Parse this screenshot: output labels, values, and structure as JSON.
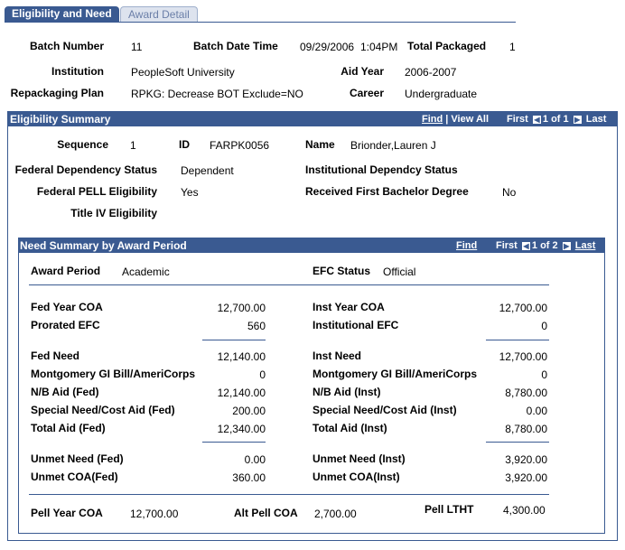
{
  "tabs": {
    "active": "Eligibility and Need",
    "inactive": "Award Detail"
  },
  "top": {
    "batch_number_label": "Batch Number",
    "batch_number": "11",
    "batch_date_label": "Batch Date Time",
    "batch_date": "09/29/2006",
    "batch_time": "1:04PM",
    "total_packaged_label": "Total Packaged",
    "total_packaged": "1",
    "institution_label": "Institution",
    "institution": "PeopleSoft University",
    "aid_year_label": "Aid Year",
    "aid_year": "2006-2007",
    "repack_label": "Repackaging Plan",
    "repack": "RPKG:  Decrease BOT Exclude=NO",
    "career_label": "Career",
    "career": "Undergraduate"
  },
  "elig": {
    "title": "Eligibility Summary",
    "nav": {
      "find": "Find",
      "sep": " | ",
      "view_all": "View All",
      "first": "First",
      "count": "1 of 1",
      "last": "Last"
    },
    "sequence_label": "Sequence",
    "sequence": "1",
    "id_label": "ID",
    "id": "FARPK0056",
    "name_label": "Name",
    "name": "Brionder,Lauren J",
    "fed_dep_label": "Federal Dependency Status",
    "fed_dep": "Dependent",
    "inst_dep_label": "Institutional Dependcy Status",
    "pell_label": "Federal PELL Eligibility",
    "pell": "Yes",
    "bach_label": "Received First Bachelor Degree",
    "bach": "No",
    "title4_label": "Title IV Eligibility"
  },
  "need": {
    "title": "Need Summary by Award Period",
    "nav": {
      "find": "Find",
      "first": "First",
      "count": "1 of 2",
      "last": "Last"
    },
    "award_period_label": "Award Period",
    "award_period": "Academic",
    "efc_status_label": "EFC Status",
    "efc_status": "Official",
    "fed": [
      {
        "label": "Fed Year COA",
        "value": "12,700.00"
      },
      {
        "label": "Prorated EFC",
        "value": "560"
      },
      {
        "label": "Fed Need",
        "value": "12,140.00"
      },
      {
        "label": "Montgomery GI Bill/AmeriCorps",
        "value": "0"
      },
      {
        "label": "N/B Aid (Fed)",
        "value": "12,140.00"
      },
      {
        "label": "Special Need/Cost Aid (Fed)",
        "value": "200.00"
      },
      {
        "label": "Total Aid (Fed)",
        "value": "12,340.00"
      },
      {
        "label": "Unmet Need (Fed)",
        "value": "0.00"
      },
      {
        "label": "Unmet COA(Fed)",
        "value": "360.00"
      }
    ],
    "inst": [
      {
        "label": "Inst Year COA",
        "value": "12,700.00"
      },
      {
        "label": "Institutional EFC",
        "value": "0"
      },
      {
        "label": "Inst Need",
        "value": "12,700.00"
      },
      {
        "label": "Montgomery GI Bill/AmeriCorps",
        "value": "0"
      },
      {
        "label": "N/B Aid (Inst)",
        "value": "8,780.00"
      },
      {
        "label": "Special Need/Cost Aid (Inst)",
        "value": "0.00"
      },
      {
        "label": "Total Aid (Inst)",
        "value": "8,780.00"
      },
      {
        "label": "Unmet Need (Inst)",
        "value": "3,920.00"
      },
      {
        "label": "Unmet COA(Inst)",
        "value": "3,920.00"
      }
    ],
    "pell_coa_label": "Pell Year COA",
    "pell_coa": "12,700.00",
    "alt_pell_label": "Alt Pell COA",
    "alt_pell": "2,700.00",
    "pell_ltht_label": "Pell LTHT",
    "pell_ltht": "4,300.00"
  },
  "colors": {
    "accent": "#3a5a91"
  }
}
